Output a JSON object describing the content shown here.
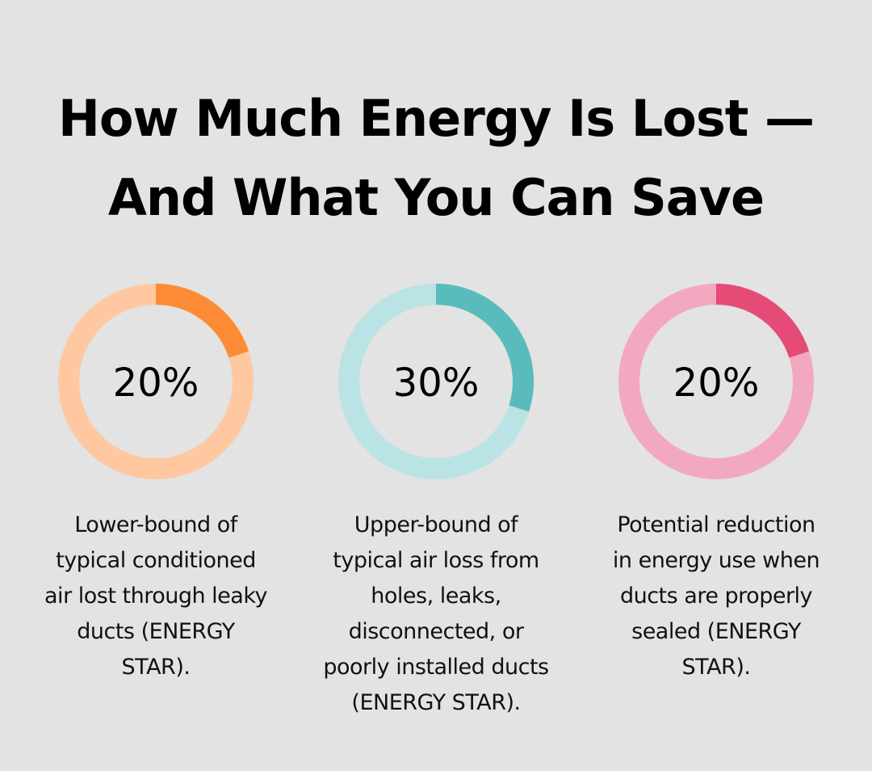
{
  "title_lines": [
    "How Much Energy Is Lost —",
    "And What You Can Save"
  ],
  "chart_data": [
    {
      "type": "pie",
      "value": 20,
      "label": "20%",
      "colors": {
        "highlight": "#fd8b35",
        "track": "#ffc8a0"
      },
      "caption_lines": [
        "Lower-bound of",
        "typical conditioned",
        "air lost through leaky",
        "ducts (ENERGY",
        "STAR)."
      ]
    },
    {
      "type": "pie",
      "value": 30,
      "label": "30%",
      "colors": {
        "highlight": "#5abbbd",
        "track": "#b9e3e5"
      },
      "caption_lines": [
        "Upper-bound of",
        "typical air loss from",
        "holes, leaks,",
        "disconnected, or",
        "poorly installed ducts",
        "(ENERGY STAR)."
      ]
    },
    {
      "type": "pie",
      "value": 20,
      "label": "20%",
      "colors": {
        "highlight": "#e44b77",
        "track": "#f2a9c0"
      },
      "caption_lines": [
        "Potential reduction",
        "in energy use when",
        "ducts are properly",
        "sealed (ENERGY",
        "STAR)."
      ]
    }
  ]
}
